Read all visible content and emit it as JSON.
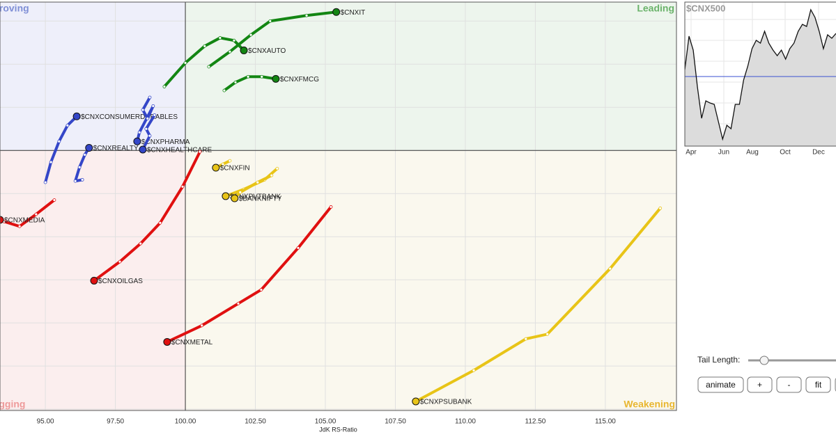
{
  "chart_data": [
    {
      "type": "rrg",
      "x_label": "JdK RS-Ratio",
      "xlim": [
        93.38,
        117.54
      ],
      "ylim": [
        93.97,
        103.44
      ],
      "center": [
        100,
        100
      ],
      "xticks": [
        {
          "value": 95,
          "label": "95.00"
        },
        {
          "value": 97.5,
          "label": "97.50"
        },
        {
          "value": 100,
          "label": "100.00"
        },
        {
          "value": 102.5,
          "label": "102.50"
        },
        {
          "value": 105,
          "label": "105.00"
        },
        {
          "value": 107.5,
          "label": "107.50"
        },
        {
          "value": 110,
          "label": "110.00"
        },
        {
          "value": 112.5,
          "label": "112.50"
        },
        {
          "value": 115,
          "label": "115.00"
        }
      ],
      "yticks": [
        94,
        95,
        96,
        97,
        98,
        99,
        100,
        101,
        102,
        103
      ],
      "grid": true,
      "quadrants": {
        "improving": {
          "label": "Improving",
          "color": "#7f8fd6",
          "fill": "#eeeffa"
        },
        "leading": {
          "label": "Leading",
          "color": "#6bb36b",
          "fill": "#edf5ed"
        },
        "weakening": {
          "label": "Weakening",
          "color": "#e8b630",
          "fill": "#faf8ee"
        },
        "lagging": {
          "label": "Lagging",
          "color": "#ee9a9a",
          "fill": "#fbeeee"
        }
      },
      "series": [
        {
          "name": "$CNXIT",
          "color": "#138613",
          "x": [
            100.84,
            101.59,
            102.34,
            103.03,
            104.33,
            105.39
          ],
          "y": [
            101.94,
            102.29,
            102.68,
            103.0,
            103.13,
            103.21
          ]
        },
        {
          "name": "$CNXAUTO",
          "color": "#138613",
          "x": [
            99.25,
            100.0,
            100.69,
            101.24,
            101.74,
            102.09
          ],
          "y": [
            101.48,
            102.03,
            102.42,
            102.61,
            102.55,
            102.32
          ]
        },
        {
          "name": "$CNXFMCG",
          "color": "#138613",
          "x": [
            101.39,
            101.79,
            102.24,
            102.73,
            103.23
          ],
          "y": [
            101.39,
            101.58,
            101.71,
            101.71,
            101.66
          ]
        },
        {
          "name": "$CNXCONSUMERDURABLES",
          "color": "#3446c8",
          "x": [
            95.0,
            95.2,
            95.49,
            95.79,
            96.12
          ],
          "y": [
            99.26,
            99.73,
            100.21,
            100.58,
            100.79
          ]
        },
        {
          "name": "$CNXREALTY",
          "color": "#3446c8",
          "x": [
            96.32,
            96.07,
            96.22,
            96.41,
            96.56
          ],
          "y": [
            99.32,
            99.29,
            99.61,
            99.9,
            100.06
          ]
        },
        {
          "name": "$CNXPHARMA",
          "color": "#3446c8",
          "x": [
            98.73,
            98.48,
            98.65,
            98.85,
            98.36,
            98.28
          ],
          "y": [
            101.23,
            100.94,
            100.74,
            101.03,
            100.42,
            100.21
          ]
        },
        {
          "name": "$CNXHEALTHCARE",
          "color": "#3446c8",
          "x": [
            98.9,
            98.6,
            98.73,
            98.48
          ],
          "y": [
            100.82,
            100.5,
            100.34,
            100.02
          ]
        },
        {
          "name": "$CNXMEDIA",
          "color": "#e01010",
          "x": [
            95.32,
            94.67,
            94.08,
            93.53,
            93.38
          ],
          "y": [
            98.85,
            98.52,
            98.24,
            98.35,
            98.39
          ]
        },
        {
          "name": "$CNXOILGAS",
          "color": "#e01010",
          "x": [
            100.52,
            99.9,
            99.1,
            98.4,
            97.66,
            96.74
          ],
          "y": [
            99.97,
            99.16,
            98.32,
            97.84,
            97.42,
            96.98
          ]
        },
        {
          "name": "$CNXMETAL",
          "color": "#e01010",
          "x": [
            105.2,
            104.03,
            102.71,
            101.89,
            100.59,
            99.35
          ],
          "y": [
            98.69,
            97.74,
            96.77,
            96.45,
            95.94,
            95.56
          ]
        },
        {
          "name": "$CNXFIN",
          "color": "#e8c417",
          "x": [
            101.59,
            101.34,
            101.09
          ],
          "y": [
            99.76,
            99.68,
            99.6
          ]
        },
        {
          "name": "$CNXPVTBANK",
          "color": "#e8c417",
          "x": [
            103.28,
            102.83,
            102.09,
            101.44
          ],
          "y": [
            99.58,
            99.32,
            99.1,
            98.94
          ]
        },
        {
          "name": "$BANKNIFTY",
          "color": "#e8c417",
          "x": [
            103.08,
            102.58,
            101.96,
            101.76
          ],
          "y": [
            99.42,
            99.26,
            99.03,
            98.89
          ]
        },
        {
          "name": "$CNXPSUBANK",
          "color": "#e8c417",
          "x": [
            116.96,
            115.17,
            112.93,
            112.16,
            110.3,
            108.23
          ],
          "y": [
            98.66,
            97.26,
            95.74,
            95.63,
            94.9,
            94.18
          ]
        }
      ]
    },
    {
      "type": "line",
      "title": "$CNX500",
      "color": "#111111",
      "fill": "#dcdcdc",
      "values": [
        55,
        79,
        69,
        42.5,
        20,
        32.5,
        31,
        30,
        17.5,
        5,
        15,
        12.5,
        30,
        30,
        47.5,
        57.5,
        70,
        76,
        74,
        82.5,
        74,
        69,
        65,
        69,
        62.5,
        70,
        74,
        82.5,
        87.5,
        86,
        98,
        92.5,
        82.5,
        70,
        80,
        77.5,
        81
      ],
      "xlim": [
        0,
        36
      ],
      "ylim": [
        0,
        103.5
      ],
      "xticks": [
        {
          "value": 1.49,
          "label": "Apr"
        },
        {
          "value": 9.29,
          "label": "Jun"
        },
        {
          "value": 16.09,
          "label": "Aug"
        },
        {
          "value": 23.89,
          "label": "Oct"
        },
        {
          "value": 31.85,
          "label": "Dec"
        }
      ],
      "yticks": [
        16,
        31,
        46,
        61,
        76,
        91
      ],
      "reference_line": {
        "value": 50,
        "color": "#3a4fd0"
      },
      "grid": true
    }
  ],
  "controls": {
    "tail_label": "Tail Length:",
    "buttons": [
      "animate",
      "+",
      "-",
      "fit"
    ]
  }
}
